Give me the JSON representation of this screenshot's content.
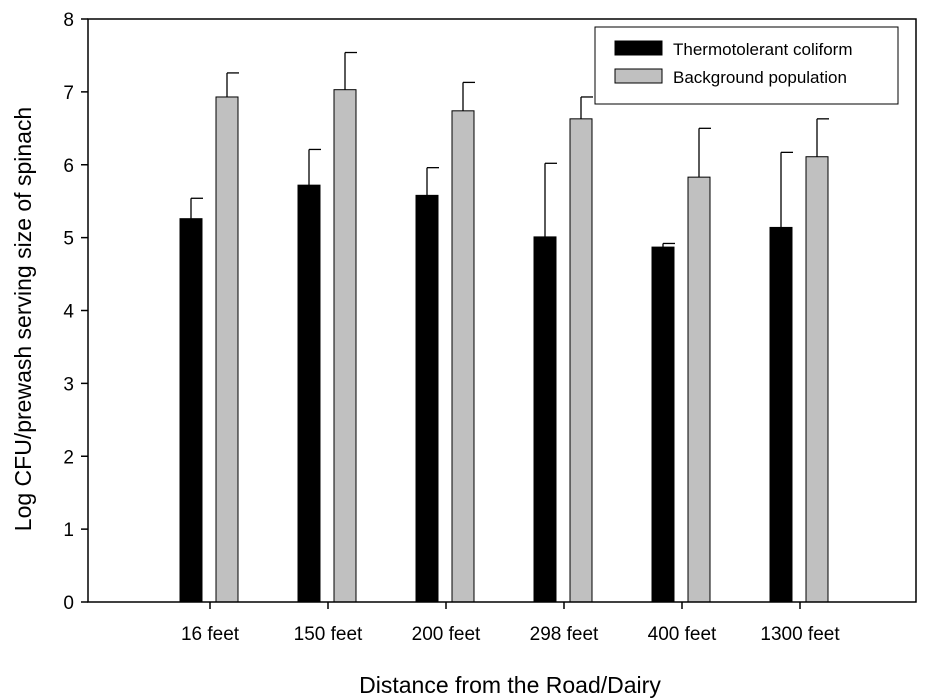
{
  "chart_data": {
    "type": "bar",
    "xlabel": "Distance from the Road/Dairy",
    "ylabel": "Log CFU/prewash serving size of spinach",
    "ylim": [
      0,
      8
    ],
    "yticks": [
      0,
      1,
      2,
      3,
      4,
      5,
      6,
      7,
      8
    ],
    "categories": [
      "16  feet",
      "150 feet",
      "200 feet",
      "298 feet",
      "400 feet",
      "1300 feet"
    ],
    "series": [
      {
        "name": "Thermotolerant coliform",
        "color": "#000000",
        "values": [
          5.26,
          5.72,
          5.58,
          5.01,
          4.87,
          5.14
        ],
        "error": [
          0.28,
          0.49,
          0.38,
          1.01,
          0.05,
          1.03
        ]
      },
      {
        "name": "Background population",
        "color": "#c0c0c0",
        "values": [
          6.93,
          7.03,
          6.74,
          6.63,
          5.83,
          6.11
        ],
        "error": [
          0.33,
          0.51,
          0.39,
          0.3,
          0.67,
          0.52
        ]
      }
    ],
    "legend_position": "top-right",
    "grid": false,
    "error_bars": "upper"
  }
}
